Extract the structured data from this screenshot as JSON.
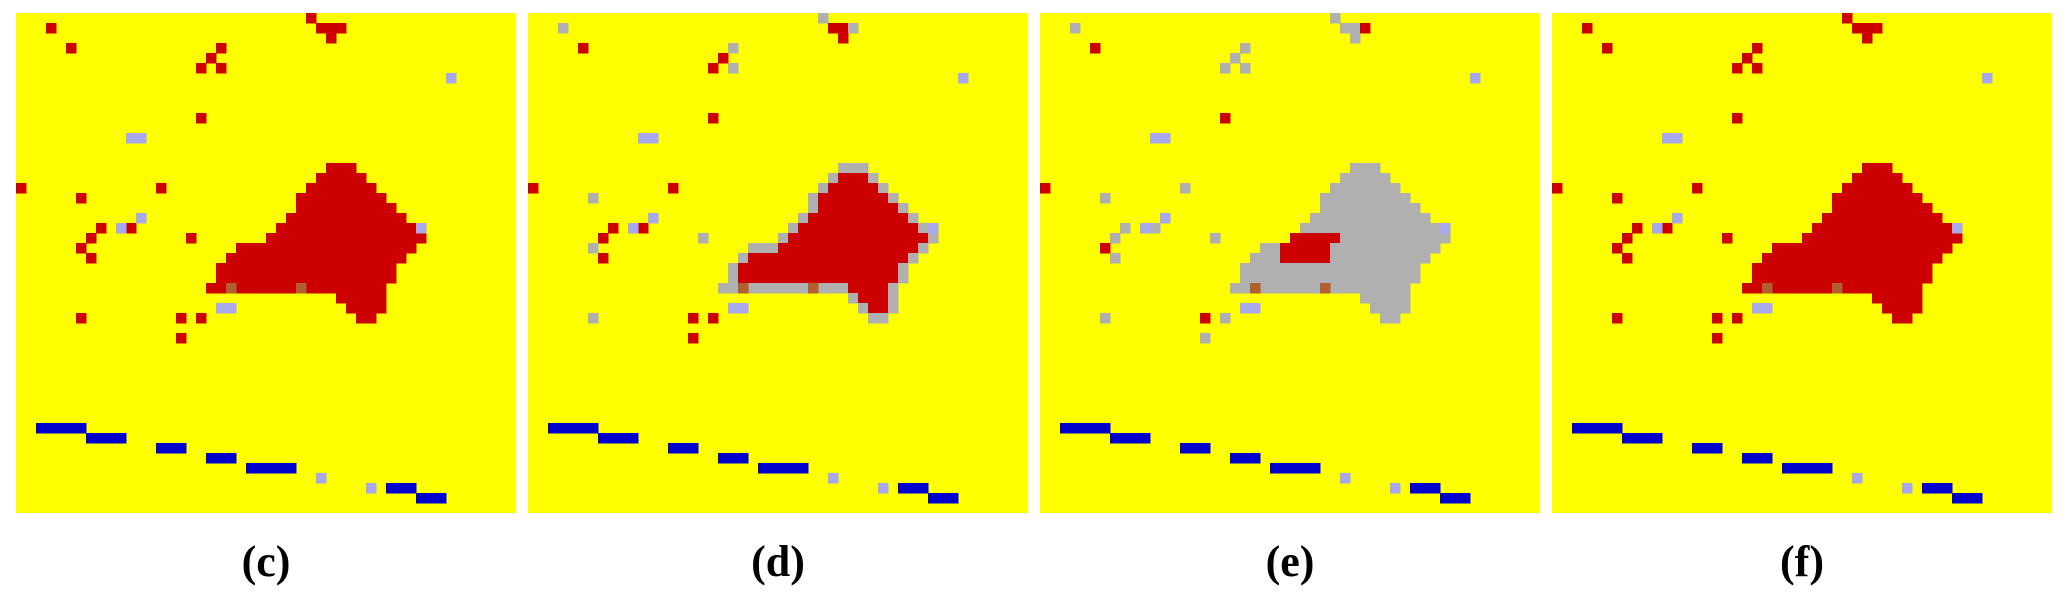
{
  "panels": [
    {
      "label": "(c)"
    },
    {
      "label": "(d)"
    },
    {
      "label": "(e)"
    },
    {
      "label": "(f)"
    }
  ]
}
